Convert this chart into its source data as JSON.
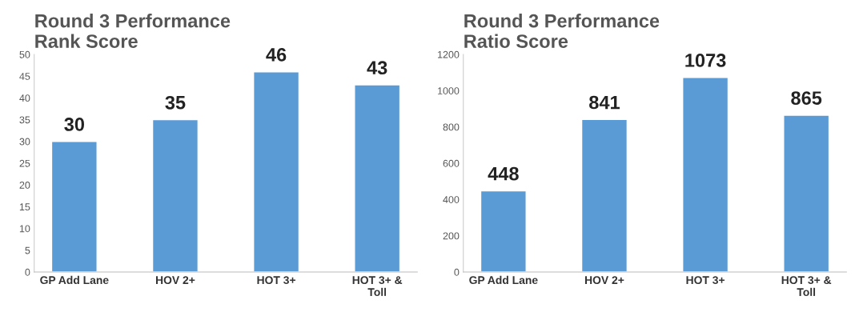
{
  "chart_data": [
    {
      "type": "bar",
      "title": "Round 3 Performance\nRank Score",
      "categories": [
        "GP Add Lane",
        "HOV 2+",
        "HOT 3+",
        "HOT 3+ &\nToll"
      ],
      "values": [
        30,
        35,
        46,
        43
      ],
      "color": "#5b9bd5",
      "ylim": [
        0,
        50
      ],
      "yticks": [
        0,
        5,
        10,
        15,
        20,
        25,
        30,
        35,
        40,
        45,
        50
      ],
      "data_labels": true,
      "grid": false,
      "legend": false
    },
    {
      "type": "bar",
      "title": "Round 3 Performance\nRatio Score",
      "categories": [
        "GP Add Lane",
        "HOV 2+",
        "HOT 3+",
        "HOT 3+ &\nToll"
      ],
      "values": [
        448,
        841,
        1073,
        865
      ],
      "color": "#5b9bd5",
      "ylim": [
        0,
        1200
      ],
      "yticks": [
        0,
        200,
        400,
        600,
        800,
        1000,
        1200
      ],
      "data_labels": true,
      "grid": false,
      "legend": false
    }
  ]
}
